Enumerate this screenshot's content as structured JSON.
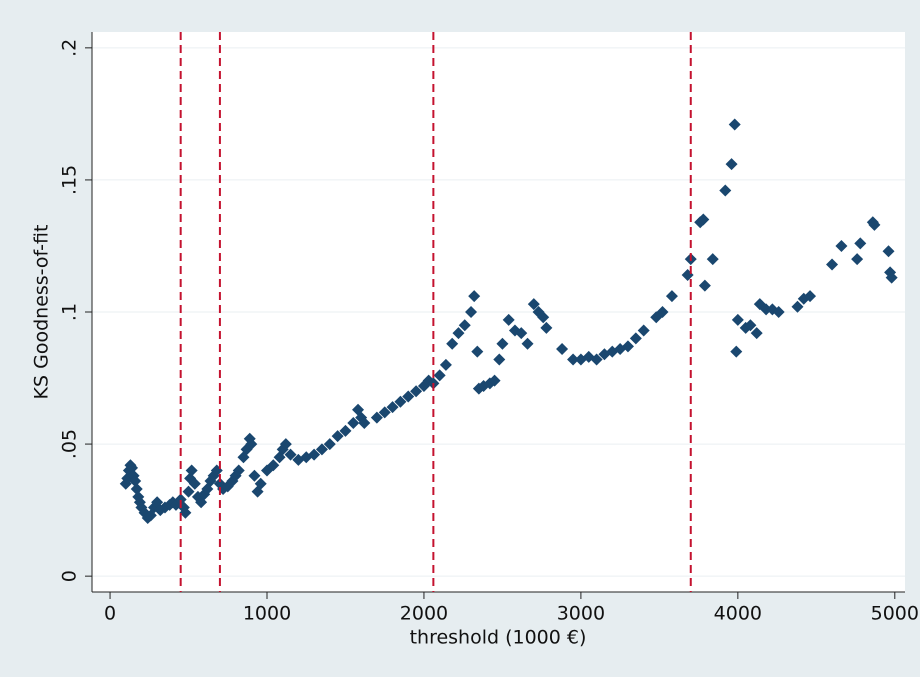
{
  "chart_data": {
    "type": "scatter",
    "x_label": "threshold (1000 €)",
    "y_label": "KS Goodness-of-fit",
    "color": "#1a476f",
    "ref_line_color": "#c4122f",
    "grid": true,
    "xlim": [
      -115,
      5065
    ],
    "ylim": [
      -0.006,
      0.206
    ],
    "xticks": [
      0,
      1000,
      2000,
      3000,
      4000,
      5000
    ],
    "yticks": [
      0,
      {
        "value": 0.05,
        "label": ".05"
      },
      {
        "value": 0.1,
        "label": ".1"
      },
      {
        "value": 0.15,
        "label": ".15"
      },
      {
        "value": 0.2,
        "label": ".2"
      }
    ],
    "xlines": [
      450,
      700,
      2060,
      3700
    ],
    "x": [
      100,
      110,
      120,
      130,
      140,
      150,
      160,
      170,
      180,
      190,
      200,
      220,
      240,
      260,
      280,
      300,
      320,
      350,
      380,
      400,
      420,
      450,
      470,
      480,
      500,
      510,
      520,
      540,
      560,
      580,
      600,
      620,
      640,
      660,
      680,
      700,
      720,
      750,
      780,
      800,
      820,
      850,
      870,
      890,
      900,
      920,
      940,
      960,
      1000,
      1040,
      1080,
      1100,
      1120,
      1150,
      1200,
      1250,
      1300,
      1350,
      1400,
      1450,
      1500,
      1550,
      1580,
      1600,
      1620,
      1700,
      1750,
      1800,
      1850,
      1900,
      1950,
      2000,
      2030,
      2060,
      2100,
      2140,
      2180,
      2220,
      2260,
      2300,
      2320,
      2340,
      2350,
      2380,
      2420,
      2450,
      2480,
      2500,
      2540,
      2580,
      2620,
      2660,
      2700,
      2730,
      2760,
      2780,
      2880,
      2950,
      3000,
      3050,
      3100,
      3150,
      3200,
      3250,
      3300,
      3350,
      3400,
      3480,
      3520,
      3580,
      3680,
      3700,
      3760,
      3780,
      3790,
      3840,
      3920,
      3960,
      3980,
      3990,
      4000,
      4050,
      4080,
      4120,
      4140,
      4180,
      4220,
      4260,
      4380,
      4420,
      4460,
      4600,
      4660,
      4760,
      4780,
      4860,
      4870,
      4960,
      4970,
      4980
    ],
    "values": [
      0.035,
      0.037,
      0.04,
      0.042,
      0.041,
      0.038,
      0.036,
      0.033,
      0.03,
      0.028,
      0.026,
      0.024,
      0.022,
      0.023,
      0.026,
      0.028,
      0.025,
      0.026,
      0.027,
      0.028,
      0.027,
      0.029,
      0.026,
      0.024,
      0.032,
      0.037,
      0.04,
      0.035,
      0.03,
      0.028,
      0.031,
      0.033,
      0.036,
      0.038,
      0.04,
      0.035,
      0.033,
      0.034,
      0.036,
      0.038,
      0.04,
      0.045,
      0.048,
      0.052,
      0.05,
      0.038,
      0.032,
      0.035,
      0.04,
      0.042,
      0.045,
      0.048,
      0.05,
      0.046,
      0.044,
      0.045,
      0.046,
      0.048,
      0.05,
      0.053,
      0.055,
      0.058,
      0.063,
      0.06,
      0.058,
      0.06,
      0.062,
      0.064,
      0.066,
      0.068,
      0.07,
      0.072,
      0.074,
      0.073,
      0.076,
      0.08,
      0.088,
      0.092,
      0.095,
      0.1,
      0.106,
      0.085,
      0.071,
      0.072,
      0.073,
      0.074,
      0.082,
      0.088,
      0.097,
      0.093,
      0.092,
      0.088,
      0.103,
      0.1,
      0.098,
      0.094,
      0.086,
      0.082,
      0.082,
      0.083,
      0.082,
      0.084,
      0.085,
      0.086,
      0.087,
      0.09,
      0.093,
      0.098,
      0.1,
      0.106,
      0.114,
      0.12,
      0.134,
      0.135,
      0.11,
      0.12,
      0.146,
      0.156,
      0.171,
      0.085,
      0.097,
      0.094,
      0.095,
      0.092,
      0.103,
      0.101,
      0.101,
      0.1,
      0.102,
      0.105,
      0.106,
      0.118,
      0.125,
      0.12,
      0.126,
      0.134,
      0.133,
      0.123,
      0.115,
      0.113
    ]
  }
}
